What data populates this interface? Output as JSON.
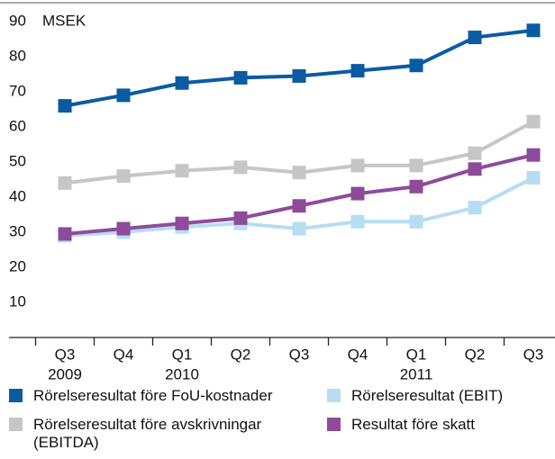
{
  "chart_data": {
    "type": "line",
    "y_label": "MSEK",
    "categories": [
      "Q3",
      "Q4",
      "Q1",
      "Q2",
      "Q3",
      "Q4",
      "Q1",
      "Q2",
      "Q3"
    ],
    "category_years": [
      "2009",
      null,
      "2010",
      null,
      null,
      null,
      "2011",
      null,
      null
    ],
    "series": [
      {
        "name": "Rörelseresultat före FoU-kostnader",
        "color": "#0b5aa4",
        "values": [
          66,
          69,
          72.5,
          74,
          74.5,
          76,
          77.5,
          85.5,
          87.5
        ]
      },
      {
        "name": "Rörelseresultat (EBIT)",
        "color": "#b7ddf3",
        "values": [
          29,
          30,
          31.5,
          32.5,
          31,
          33,
          33,
          37,
          45.5
        ]
      },
      {
        "name": "Rörelseresultat före avskrivningar (EBITDA)",
        "color": "#c6c6c6",
        "values": [
          44,
          46,
          47.5,
          48.5,
          47,
          49,
          49,
          52.5,
          61.5
        ]
      },
      {
        "name": "Resultat före skatt",
        "color": "#8e4b9b",
        "values": [
          29.5,
          31,
          32.5,
          34,
          37.5,
          41,
          43,
          48,
          52
        ]
      }
    ],
    "ylim": [
      0,
      90
    ],
    "yticks": [
      10,
      20,
      30,
      40,
      50,
      60,
      70,
      80,
      90
    ],
    "grid": false
  }
}
